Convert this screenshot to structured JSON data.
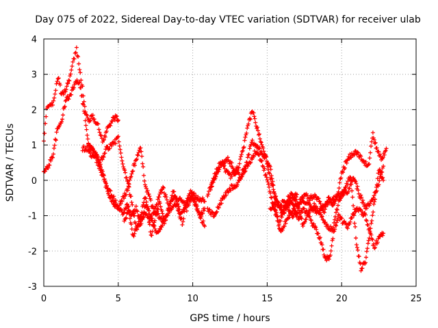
{
  "chart_data": {
    "type": "scatter",
    "title": "Day 075 of 2022, Sidereal Day-to-day VTEC variation (SDTVAR) for receiver ulab",
    "xlabel": "GPS time / hours",
    "ylabel": "SDTVAR / TECUs",
    "xlim": [
      0,
      25
    ],
    "ylim": [
      -3,
      4
    ],
    "xticks": [
      0,
      5,
      10,
      15,
      20,
      25
    ],
    "yticks": [
      -3,
      -2,
      -1,
      0,
      1,
      2,
      3,
      4
    ],
    "grid": true,
    "marker": "plus",
    "color": "#ff0000",
    "series": [
      {
        "name": "SDTVAR",
        "tracks": [
          {
            "x": [
              0.0,
              0.2,
              0.4,
              0.6,
              0.8,
              1.0,
              1.2,
              1.5,
              1.8,
              2.0,
              2.2,
              2.4,
              2.6,
              2.8,
              3.0,
              3.3,
              3.6,
              3.8,
              4.0,
              4.3,
              4.6,
              4.9,
              5.0
            ],
            "y": [
              1.1,
              2.0,
              2.2,
              2.1,
              2.6,
              2.9,
              2.4,
              2.6,
              3.0,
              3.4,
              3.7,
              3.2,
              2.6,
              1.9,
              1.7,
              1.8,
              1.6,
              1.3,
              1.1,
              1.5,
              1.7,
              1.8,
              1.7
            ]
          },
          {
            "x": [
              0.0,
              0.3,
              0.6,
              0.9,
              1.2,
              1.5,
              1.8,
              2.1,
              2.4,
              2.7,
              3.0,
              3.3,
              3.6,
              3.9,
              4.2,
              4.5,
              4.8,
              5.0,
              5.3,
              5.6,
              5.9,
              6.2,
              6.5,
              6.8,
              7.1,
              7.5,
              8.0
            ],
            "y": [
              0.2,
              0.4,
              0.7,
              1.4,
              1.7,
              2.3,
              2.4,
              2.8,
              2.8,
              2.0,
              1.0,
              0.8,
              0.6,
              0.3,
              -0.2,
              -0.5,
              -0.7,
              -0.8,
              -0.9,
              -0.7,
              -1.0,
              -0.8,
              -1.2,
              -0.9,
              -1.1,
              -0.9,
              -1.2
            ]
          },
          {
            "x": [
              2.6,
              2.9,
              3.2,
              3.5,
              3.8,
              4.1,
              4.4,
              4.7,
              5.0,
              5.3,
              5.6,
              5.9,
              6.2,
              6.5,
              6.8,
              7.1,
              7.4,
              7.7,
              8.0,
              8.4,
              8.8,
              9.2,
              9.6,
              10.0,
              10.4,
              10.8
            ],
            "y": [
              0.9,
              0.9,
              0.7,
              0.6,
              0.3,
              0.0,
              -0.3,
              -0.5,
              -0.8,
              -0.5,
              -0.3,
              0.2,
              0.6,
              0.9,
              -0.1,
              -0.5,
              -0.9,
              -0.5,
              -0.2,
              -0.8,
              -0.4,
              -1.0,
              -0.6,
              -0.5,
              -0.9,
              -1.3
            ]
          },
          {
            "x": [
              3.0,
              3.4,
              3.8,
              4.2,
              4.6,
              5.0,
              5.3,
              5.6,
              5.9,
              6.2,
              6.5,
              6.8,
              7.2,
              7.6,
              8.0,
              8.4,
              8.8,
              9.2,
              9.6,
              10.0,
              10.4,
              10.8
            ],
            "y": [
              1.0,
              0.8,
              0.5,
              0.9,
              1.0,
              1.2,
              0.4,
              0.0,
              -0.6,
              -1.4,
              -1.0,
              -0.5,
              -1.1,
              -1.5,
              -1.2,
              -0.9,
              -0.7,
              -0.5,
              -0.8,
              -0.4,
              -0.5,
              -0.6
            ]
          },
          {
            "x": [
              5.4,
              5.7,
              6.0,
              6.3,
              6.6,
              6.9,
              7.2,
              7.5,
              7.8,
              8.1,
              8.4,
              8.7,
              9.0,
              9.3,
              9.6,
              9.9,
              10.2,
              10.5,
              10.8
            ],
            "y": [
              -1.2,
              -0.8,
              -1.6,
              -1.3,
              -1.1,
              -0.6,
              -1.6,
              -1.0,
              -0.6,
              -1.2,
              -0.7,
              -0.3,
              -0.8,
              -1.2,
              -0.6,
              -0.3,
              -0.7,
              -1.0,
              -0.8
            ]
          },
          {
            "x": [
              11.0,
              11.3,
              11.6,
              11.9,
              12.2,
              12.5,
              12.8,
              13.1,
              13.4,
              13.7,
              14.0,
              14.3,
              14.6,
              14.9,
              15.2,
              15.5,
              15.8,
              16.1,
              16.4,
              16.7,
              17.0
            ],
            "y": [
              -0.4,
              -0.1,
              0.3,
              0.5,
              0.3,
              0.1,
              0.2,
              0.4,
              0.9,
              1.5,
              2.0,
              1.5,
              1.1,
              0.7,
              0.1,
              -0.4,
              -0.7,
              -0.9,
              -0.7,
              -0.5,
              -0.4
            ]
          },
          {
            "x": [
              11.0,
              11.4,
              11.8,
              12.2,
              12.6,
              13.0,
              13.4,
              13.8,
              14.2,
              14.6,
              15.0,
              15.3,
              15.6,
              15.9,
              16.2,
              16.5,
              16.8,
              17.1,
              17.4,
              17.7,
              18.0,
              18.3,
              18.6,
              18.9,
              19.2,
              19.5,
              19.8,
              20.1,
              20.4,
              20.7,
              21.0,
              21.3,
              21.6,
              21.9,
              22.2,
              22.5,
              22.8
            ],
            "y": [
              -0.8,
              -1.0,
              -0.7,
              -0.4,
              -0.2,
              -0.1,
              0.2,
              0.5,
              0.8,
              0.6,
              0.0,
              -0.5,
              -1.0,
              -1.5,
              -1.2,
              -1.0,
              -0.8,
              -1.1,
              -0.8,
              -0.9,
              -1.2,
              -1.4,
              -1.7,
              -2.2,
              -2.2,
              -1.4,
              -1.0,
              -1.2,
              -1.3,
              -1.0,
              -0.8,
              -0.9,
              -1.0,
              -1.5,
              -1.9,
              -1.6,
              -1.5
            ]
          },
          {
            "x": [
              11.2,
              11.6,
              12.0,
              12.4,
              12.8,
              13.2,
              13.6,
              14.0,
              14.4,
              14.8,
              15.2,
              15.5,
              15.8,
              16.1,
              16.4,
              16.7,
              17.0,
              17.3,
              17.6,
              17.9,
              18.2,
              18.5,
              18.8,
              19.1,
              19.4,
              19.7,
              20.0,
              20.3,
              20.6,
              20.9,
              21.2,
              21.5,
              21.8,
              22.1,
              22.4,
              22.7,
              23.0
            ],
            "y": [
              -0.2,
              0.2,
              0.5,
              0.6,
              0.3,
              0.1,
              0.5,
              1.1,
              0.9,
              0.7,
              0.4,
              -0.4,
              -0.7,
              -0.6,
              -0.8,
              -1.0,
              -0.9,
              -0.6,
              -0.7,
              -0.5,
              -0.4,
              -0.6,
              -0.9,
              -0.5,
              -0.7,
              -0.5,
              0.2,
              0.5,
              0.7,
              0.8,
              0.7,
              0.5,
              0.4,
              1.3,
              0.8,
              0.6,
              0.9
            ]
          },
          {
            "x": [
              15.4,
              15.8,
              16.2,
              16.6,
              17.0,
              17.4,
              17.8,
              18.2,
              18.6,
              19.0,
              19.4,
              19.8,
              20.2,
              20.6,
              21.0,
              21.3,
              21.6,
              21.9,
              22.2,
              22.5,
              22.8
            ],
            "y": [
              -0.6,
              -1.2,
              -0.8,
              -0.4,
              -0.6,
              -1.3,
              -0.9,
              -0.7,
              -1.0,
              -1.3,
              -1.4,
              -0.6,
              -0.2,
              0.1,
              -1.8,
              -2.5,
              -2.3,
              -1.5,
              -0.6,
              0.3,
              0.0
            ]
          },
          {
            "x": [
              15.2,
              15.6,
              16.0,
              16.4,
              16.8,
              17.2,
              17.6,
              18.0,
              18.4,
              18.8,
              19.2,
              19.6,
              20.0,
              20.4,
              20.8,
              21.2,
              21.6,
              22.0,
              22.4,
              22.8
            ],
            "y": [
              -0.8,
              -0.6,
              -0.9,
              -0.5,
              -0.7,
              -0.6,
              -0.4,
              -0.8,
              -0.9,
              -0.7,
              -0.6,
              -0.5,
              -0.4,
              -0.3,
              0.1,
              -0.4,
              -0.8,
              -0.6,
              -0.2,
              0.4
            ]
          }
        ]
      }
    ]
  }
}
